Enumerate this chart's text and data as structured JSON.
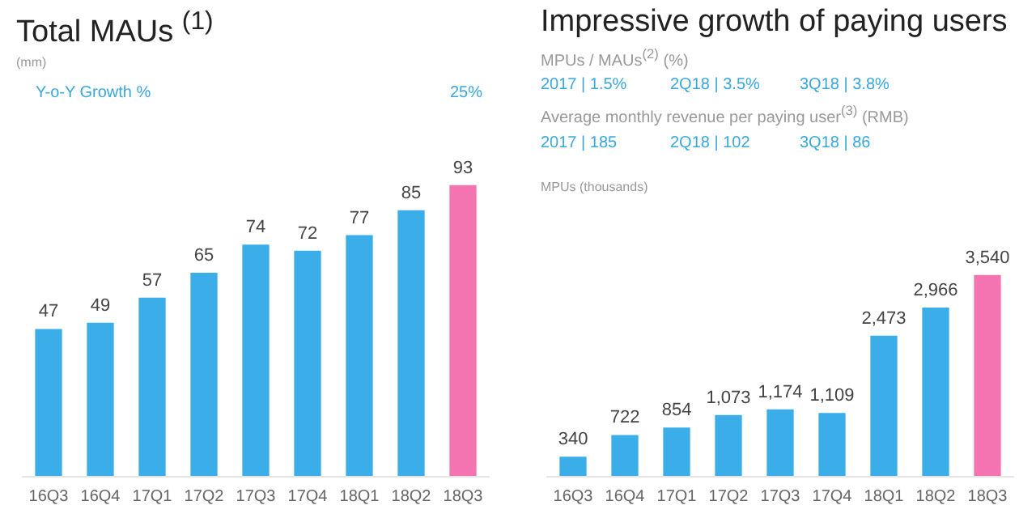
{
  "chart_data": [
    {
      "type": "bar",
      "title": "Total MAUs $^{(1)}$",
      "subtitle": "(mm)",
      "annotations": [
        "Y-o-Y Growth %",
        "25%"
      ],
      "categories": [
        "16Q3",
        "16Q4",
        "17Q1",
        "17Q2",
        "17Q3",
        "17Q4",
        "18Q1",
        "18Q2",
        "18Q3"
      ],
      "values": [
        47,
        49,
        57,
        65,
        74,
        72,
        77,
        85,
        93
      ],
      "colors": [
        "#3baeea",
        "#3baeea",
        "#3baeea",
        "#3baeea",
        "#3baeea",
        "#3baeea",
        "#3baeea",
        "#3baeea",
        "#f374b0"
      ],
      "data_labels": true
    },
    {
      "type": "bar",
      "title": "Impressive growth of paying users",
      "ylabel": "MPUs (thousands)",
      "annotations": [
        "MPUs / MAUs$^{(2)}$ (%)",
        "2017 | 1.5%",
        "2Q18 | 3.5%",
        "3Q18 | 3.8%",
        "Average monthly revenue per paying user$^{(3)}$ (RMB)",
        "2017 | 185",
        "2Q18 | 102",
        "3Q18 | 86"
      ],
      "categories": [
        "16Q3",
        "16Q4",
        "17Q1",
        "17Q2",
        "17Q3",
        "17Q4",
        "18Q1",
        "18Q2",
        "18Q3"
      ],
      "values": [
        340,
        722,
        854,
        1073,
        1174,
        1109,
        2473,
        2966,
        3540
      ],
      "value_labels": [
        "340",
        "722",
        "854",
        "1,073",
        "1,174",
        "1,109",
        "2,473",
        "2,966",
        "3,540"
      ],
      "colors": [
        "#3baeea",
        "#3baeea",
        "#3baeea",
        "#3baeea",
        "#3baeea",
        "#3baeea",
        "#3baeea",
        "#3baeea",
        "#f374b0"
      ]
    }
  ]
}
